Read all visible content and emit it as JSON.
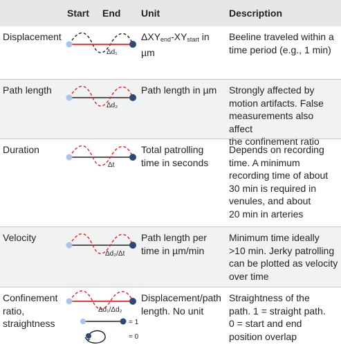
{
  "header": {
    "start": "Start",
    "end": "End",
    "unit": "Unit",
    "description": "Description"
  },
  "rows": [
    {
      "metric_lines": [
        "Displacement"
      ],
      "unit_html": "ΔXY<span class=\"sub\">end</span>-XY<span class=\"sub\">start</span> in µm",
      "unit_lines": [],
      "desc_lines": [
        "Beeline traveled within a",
        "time period (e.g., 1 min)"
      ],
      "fig_label": "Δd₁"
    },
    {
      "metric_lines": [
        "Path length"
      ],
      "unit_lines": [
        "Path length in µm"
      ],
      "desc_lines": [
        "Strongly affected by",
        "motion artifacts. False",
        "measurements also affect",
        "the confinement ratio"
      ],
      "fig_label": "Δd₂"
    },
    {
      "metric_lines": [
        "Duration"
      ],
      "unit_lines": [
        "Total patrolling",
        "time in seconds"
      ],
      "desc_lines": [
        "Depends on recording",
        "time. A minimum",
        "recording time of about",
        "30 min is required in",
        "venules, and about",
        "20 min in arteries"
      ],
      "fig_label": "Δt"
    },
    {
      "metric_lines": [
        "Velocity"
      ],
      "unit_lines": [
        "Path length per",
        "time in µm/min"
      ],
      "desc_lines": [
        "Minimum time ideally",
        ">10 min. Jerky patrolling",
        "can be plotted as velocity",
        "over time"
      ],
      "fig_label": "Δd₂/Δt"
    },
    {
      "metric_lines": [
        "Confinement",
        "ratio,",
        "straightness"
      ],
      "unit_lines": [
        "Displacement/path",
        "length. No unit"
      ],
      "desc_lines": [
        "Straightness of the",
        "path. 1 = straight path.",
        "0 = start and end",
        "position overlap"
      ],
      "fig_label": "Δd₁/Δd₂",
      "fig_val_one": "= 1",
      "fig_val_zero": "= 0"
    }
  ],
  "colors": {
    "header_bg": "#e6e7e8",
    "shade_bg": "#f1f2f2",
    "start_dot": "#a9c4e6",
    "end_dot": "#2c4a74",
    "red_path": "#ed1c24",
    "text": "#231f20"
  }
}
